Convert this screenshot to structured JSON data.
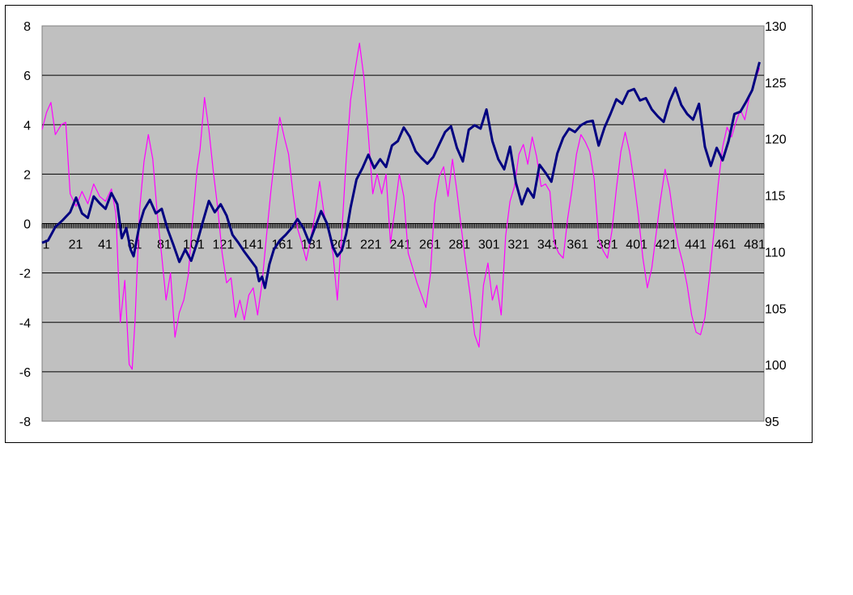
{
  "chart_data": {
    "type": "line",
    "title": "",
    "xlabel": "",
    "ylabel": "",
    "y_left": {
      "min": -8,
      "max": 8,
      "step": 2,
      "ticks": [
        "-8",
        "-6",
        "-4",
        "-2",
        "0",
        "2",
        "4",
        "6",
        "8"
      ]
    },
    "y_right": {
      "min": 95,
      "max": 130,
      "step": 5,
      "ticks": [
        "95",
        "100",
        "105",
        "110",
        "115",
        "120",
        "125",
        "130"
      ]
    },
    "x_range": [
      1,
      490
    ],
    "x_tick_labels": [
      "1",
      "21",
      "41",
      "61",
      "81",
      "101",
      "121",
      "141",
      "161",
      "181",
      "201",
      "221",
      "241",
      "261",
      "281",
      "301",
      "321",
      "341",
      "361",
      "381",
      "401",
      "421",
      "441",
      "461",
      "481"
    ],
    "grid": true,
    "plot_background": "#c0c0c0",
    "series": [
      {
        "axis": "right",
        "color": "#000080",
        "points": [
          [
            1,
            110.8
          ],
          [
            5,
            111.0
          ],
          [
            10,
            112.2
          ],
          [
            15,
            112.8
          ],
          [
            20,
            113.5
          ],
          [
            24,
            114.8
          ],
          [
            28,
            113.4
          ],
          [
            32,
            113.0
          ],
          [
            36,
            114.9
          ],
          [
            40,
            114.3
          ],
          [
            44,
            113.8
          ],
          [
            48,
            115.2
          ],
          [
            52,
            114.2
          ],
          [
            55,
            111.2
          ],
          [
            58,
            112.1
          ],
          [
            61,
            110.2
          ],
          [
            63,
            109.6
          ],
          [
            67,
            112.4
          ],
          [
            70,
            113.7
          ],
          [
            74,
            114.6
          ],
          [
            78,
            113.4
          ],
          [
            82,
            113.8
          ],
          [
            86,
            112.0
          ],
          [
            90,
            110.6
          ],
          [
            94,
            109.1
          ],
          [
            98,
            110.2
          ],
          [
            102,
            109.2
          ],
          [
            106,
            110.8
          ],
          [
            110,
            112.7
          ],
          [
            114,
            114.5
          ],
          [
            118,
            113.5
          ],
          [
            122,
            114.2
          ],
          [
            126,
            113.2
          ],
          [
            130,
            111.5
          ],
          [
            134,
            110.8
          ],
          [
            138,
            110.0
          ],
          [
            142,
            109.3
          ],
          [
            146,
            108.6
          ],
          [
            148,
            107.4
          ],
          [
            150,
            107.8
          ],
          [
            152,
            106.8
          ],
          [
            155,
            108.9
          ],
          [
            158,
            110.2
          ],
          [
            162,
            111.0
          ],
          [
            166,
            111.5
          ],
          [
            170,
            112.1
          ],
          [
            174,
            112.9
          ],
          [
            178,
            112.1
          ],
          [
            182,
            110.8
          ],
          [
            186,
            112.2
          ],
          [
            190,
            113.6
          ],
          [
            194,
            112.5
          ],
          [
            198,
            110.4
          ],
          [
            201,
            109.6
          ],
          [
            204,
            110.1
          ],
          [
            207,
            111.6
          ],
          [
            210,
            113.9
          ],
          [
            214,
            116.4
          ],
          [
            218,
            117.4
          ],
          [
            222,
            118.6
          ],
          [
            226,
            117.4
          ],
          [
            230,
            118.2
          ],
          [
            234,
            117.5
          ],
          [
            238,
            119.4
          ],
          [
            242,
            119.8
          ],
          [
            246,
            121.0
          ],
          [
            250,
            120.2
          ],
          [
            254,
            118.9
          ],
          [
            258,
            118.3
          ],
          [
            262,
            117.8
          ],
          [
            266,
            118.4
          ],
          [
            270,
            119.5
          ],
          [
            274,
            120.6
          ],
          [
            278,
            121.1
          ],
          [
            282,
            119.2
          ],
          [
            286,
            118.0
          ],
          [
            290,
            120.8
          ],
          [
            294,
            121.2
          ],
          [
            298,
            120.9
          ],
          [
            302,
            122.6
          ],
          [
            306,
            119.8
          ],
          [
            310,
            118.2
          ],
          [
            314,
            117.3
          ],
          [
            318,
            119.3
          ],
          [
            322,
            116.1
          ],
          [
            326,
            114.2
          ],
          [
            330,
            115.6
          ],
          [
            334,
            114.8
          ],
          [
            338,
            117.7
          ],
          [
            342,
            117.0
          ],
          [
            346,
            116.2
          ],
          [
            350,
            118.7
          ],
          [
            354,
            120.1
          ],
          [
            358,
            120.9
          ],
          [
            362,
            120.6
          ],
          [
            366,
            121.2
          ],
          [
            370,
            121.5
          ],
          [
            374,
            121.6
          ],
          [
            378,
            119.4
          ],
          [
            382,
            121.0
          ],
          [
            386,
            122.2
          ],
          [
            390,
            123.5
          ],
          [
            394,
            123.1
          ],
          [
            398,
            124.2
          ],
          [
            402,
            124.4
          ],
          [
            406,
            123.4
          ],
          [
            410,
            123.6
          ],
          [
            414,
            122.6
          ],
          [
            418,
            122.0
          ],
          [
            422,
            121.5
          ],
          [
            426,
            123.3
          ],
          [
            430,
            124.5
          ],
          [
            434,
            123.0
          ],
          [
            438,
            122.2
          ],
          [
            442,
            121.7
          ],
          [
            446,
            123.1
          ],
          [
            450,
            119.3
          ],
          [
            454,
            117.6
          ],
          [
            458,
            119.2
          ],
          [
            462,
            118.1
          ],
          [
            466,
            119.8
          ],
          [
            470,
            122.2
          ],
          [
            474,
            122.4
          ],
          [
            478,
            123.3
          ],
          [
            482,
            124.3
          ],
          [
            487,
            126.8
          ]
        ]
      },
      {
        "axis": "left",
        "color": "#ff00ff",
        "points": [
          [
            1,
            3.8
          ],
          [
            4,
            4.5
          ],
          [
            7,
            4.9
          ],
          [
            10,
            3.6
          ],
          [
            14,
            4.0
          ],
          [
            17,
            4.1
          ],
          [
            20,
            1.2
          ],
          [
            24,
            0.7
          ],
          [
            28,
            1.3
          ],
          [
            32,
            0.8
          ],
          [
            36,
            1.6
          ],
          [
            40,
            1.1
          ],
          [
            44,
            0.9
          ],
          [
            48,
            1.4
          ],
          [
            51,
            0.4
          ],
          [
            54,
            -4.0
          ],
          [
            57,
            -2.3
          ],
          [
            60,
            -5.7
          ],
          [
            62,
            -5.9
          ],
          [
            64,
            -3.9
          ],
          [
            67,
            0.5
          ],
          [
            70,
            2.5
          ],
          [
            73,
            3.6
          ],
          [
            76,
            2.6
          ],
          [
            79,
            0.4
          ],
          [
            82,
            -1.3
          ],
          [
            85,
            -3.1
          ],
          [
            88,
            -2.0
          ],
          [
            91,
            -4.6
          ],
          [
            94,
            -3.6
          ],
          [
            97,
            -3.1
          ],
          [
            100,
            -2.1
          ],
          [
            103,
            0.2
          ],
          [
            106,
            2.2
          ],
          [
            108,
            3.0
          ],
          [
            111,
            5.1
          ],
          [
            114,
            3.8
          ],
          [
            117,
            2.1
          ],
          [
            120,
            0.6
          ],
          [
            123,
            -1.2
          ],
          [
            126,
            -2.4
          ],
          [
            129,
            -2.2
          ],
          [
            132,
            -3.8
          ],
          [
            135,
            -3.1
          ],
          [
            138,
            -3.9
          ],
          [
            141,
            -2.9
          ],
          [
            144,
            -2.6
          ],
          [
            147,
            -3.7
          ],
          [
            150,
            -2.4
          ],
          [
            153,
            -0.5
          ],
          [
            156,
            1.3
          ],
          [
            159,
            2.9
          ],
          [
            162,
            4.3
          ],
          [
            165,
            3.5
          ],
          [
            168,
            2.8
          ],
          [
            171,
            1.2
          ],
          [
            174,
            -0.2
          ],
          [
            177,
            -0.8
          ],
          [
            180,
            -1.5
          ],
          [
            183,
            -0.6
          ],
          [
            186,
            0.4
          ],
          [
            189,
            1.7
          ],
          [
            192,
            0.4
          ],
          [
            195,
            -0.3
          ],
          [
            198,
            -1.2
          ],
          [
            201,
            -3.1
          ],
          [
            204,
            -0.4
          ],
          [
            207,
            2.6
          ],
          [
            210,
            5.0
          ],
          [
            213,
            6.2
          ],
          [
            216,
            7.3
          ],
          [
            219,
            5.9
          ],
          [
            222,
            3.6
          ],
          [
            225,
            1.2
          ],
          [
            228,
            2.0
          ],
          [
            231,
            1.2
          ],
          [
            234,
            2.0
          ],
          [
            237,
            -0.8
          ],
          [
            240,
            0.6
          ],
          [
            243,
            2.0
          ],
          [
            246,
            1.1
          ],
          [
            249,
            -1.2
          ],
          [
            252,
            -1.8
          ],
          [
            255,
            -2.4
          ],
          [
            258,
            -2.9
          ],
          [
            261,
            -3.4
          ],
          [
            264,
            -2.1
          ],
          [
            267,
            0.8
          ],
          [
            270,
            1.9
          ],
          [
            273,
            2.3
          ],
          [
            276,
            1.1
          ],
          [
            279,
            2.6
          ],
          [
            282,
            1.3
          ],
          [
            285,
            -0.2
          ],
          [
            288,
            -1.6
          ],
          [
            291,
            -2.9
          ],
          [
            294,
            -4.5
          ],
          [
            297,
            -5.0
          ],
          [
            300,
            -2.5
          ],
          [
            303,
            -1.6
          ],
          [
            306,
            -3.1
          ],
          [
            309,
            -2.5
          ],
          [
            312,
            -3.7
          ],
          [
            315,
            -0.5
          ],
          [
            318,
            0.9
          ],
          [
            321,
            1.5
          ],
          [
            324,
            2.8
          ],
          [
            327,
            3.2
          ],
          [
            330,
            2.4
          ],
          [
            333,
            3.5
          ],
          [
            336,
            2.7
          ],
          [
            339,
            1.5
          ],
          [
            342,
            1.6
          ],
          [
            345,
            1.3
          ],
          [
            348,
            -0.8
          ],
          [
            351,
            -1.2
          ],
          [
            354,
            -1.4
          ],
          [
            357,
            0.2
          ],
          [
            360,
            1.4
          ],
          [
            363,
            2.8
          ],
          [
            366,
            3.6
          ],
          [
            369,
            3.3
          ],
          [
            372,
            2.9
          ],
          [
            375,
            1.8
          ],
          [
            378,
            -0.6
          ],
          [
            381,
            -1.1
          ],
          [
            384,
            -1.4
          ],
          [
            387,
            -0.3
          ],
          [
            390,
            1.4
          ],
          [
            393,
            2.9
          ],
          [
            396,
            3.7
          ],
          [
            399,
            2.9
          ],
          [
            402,
            1.7
          ],
          [
            405,
            0.3
          ],
          [
            408,
            -1.4
          ],
          [
            411,
            -2.6
          ],
          [
            414,
            -1.8
          ],
          [
            417,
            -0.4
          ],
          [
            420,
            1.0
          ],
          [
            423,
            2.2
          ],
          [
            426,
            1.4
          ],
          [
            429,
            0.1
          ],
          [
            432,
            -0.9
          ],
          [
            435,
            -1.6
          ],
          [
            438,
            -2.5
          ],
          [
            441,
            -3.7
          ],
          [
            444,
            -4.4
          ],
          [
            447,
            -4.5
          ],
          [
            450,
            -3.8
          ],
          [
            453,
            -2.2
          ],
          [
            456,
            -0.4
          ],
          [
            459,
            1.6
          ],
          [
            462,
            3.1
          ],
          [
            465,
            3.9
          ],
          [
            468,
            3.5
          ],
          [
            471,
            4.1
          ],
          [
            474,
            4.6
          ],
          [
            477,
            4.2
          ],
          [
            480,
            5.1
          ],
          [
            484,
            5.8
          ],
          [
            487,
            6.3
          ]
        ]
      }
    ]
  }
}
